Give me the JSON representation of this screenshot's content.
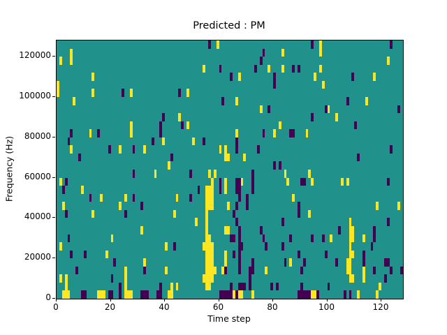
{
  "chart_data": {
    "type": "heatmap",
    "title": "Predicted : PM",
    "xlabel": "Time step",
    "ylabel": "Frequency (Hz)",
    "x_range": [
      0,
      128
    ],
    "y_range": [
      0,
      128000
    ],
    "grid": {
      "cols": 128,
      "rows": 32,
      "hz_per_row": 4000,
      "grid_lines": "off",
      "legend": "none"
    },
    "x_ticks": [
      0,
      20,
      40,
      60,
      80,
      100,
      120
    ],
    "y_ticks": [
      0,
      20000,
      40000,
      60000,
      80000,
      100000,
      120000
    ],
    "colors": {
      "background_class": "#21918c",
      "high_class": "#fde725",
      "low_class": "#440154",
      "figure_bg": "#ffffff"
    },
    "cells_yellow": [
      [
        0,
        25
      ],
      [
        0,
        26
      ],
      [
        1,
        29
      ],
      [
        5,
        29
      ],
      [
        5,
        30
      ],
      [
        6,
        24
      ],
      [
        13,
        27
      ],
      [
        13,
        25
      ],
      [
        27,
        25
      ],
      [
        27,
        21
      ],
      [
        27,
        20
      ],
      [
        45,
        22
      ],
      [
        48,
        25
      ],
      [
        48,
        21
      ],
      [
        54,
        28
      ],
      [
        59,
        31
      ],
      [
        83,
        30
      ],
      [
        78,
        28
      ],
      [
        83,
        28
      ],
      [
        67,
        27
      ],
      [
        95,
        27
      ],
      [
        66,
        24
      ],
      [
        75,
        23
      ],
      [
        82,
        21
      ],
      [
        97,
        31
      ],
      [
        97,
        30
      ],
      [
        97,
        28
      ],
      [
        122,
        29
      ],
      [
        117,
        27
      ],
      [
        98,
        26
      ],
      [
        114,
        24
      ],
      [
        100,
        23
      ],
      [
        103,
        22
      ],
      [
        12,
        20
      ],
      [
        5,
        18
      ],
      [
        23,
        18
      ],
      [
        1,
        14
      ],
      [
        9,
        13
      ],
      [
        16,
        12
      ],
      [
        25,
        12
      ],
      [
        2,
        11
      ],
      [
        23,
        11
      ],
      [
        39,
        19
      ],
      [
        50,
        19
      ],
      [
        32,
        18
      ],
      [
        41,
        16
      ],
      [
        60,
        18
      ],
      [
        62,
        18
      ],
      [
        62,
        17
      ],
      [
        63,
        17
      ],
      [
        36,
        15
      ],
      [
        56,
        15
      ],
      [
        58,
        15
      ],
      [
        44,
        12
      ],
      [
        62,
        14
      ],
      [
        62,
        13
      ],
      [
        63,
        11
      ],
      [
        87,
        12
      ],
      [
        66,
        20
      ],
      [
        80,
        20
      ],
      [
        92,
        20
      ],
      [
        69,
        17
      ],
      [
        68,
        14
      ],
      [
        84,
        15
      ],
      [
        93,
        15
      ],
      [
        85,
        14
      ],
      [
        94,
        14
      ],
      [
        105,
        14
      ],
      [
        107,
        14
      ],
      [
        118,
        11
      ],
      [
        126,
        11
      ],
      [
        55,
        13
      ],
      [
        55,
        12
      ],
      [
        55,
        11
      ],
      [
        56,
        13
      ],
      [
        56,
        12
      ],
      [
        56,
        11
      ],
      [
        57,
        14
      ],
      [
        57,
        13
      ],
      [
        57,
        12
      ],
      [
        57,
        11
      ],
      [
        3,
        2
      ],
      [
        3,
        1
      ],
      [
        2,
        0
      ],
      [
        3,
        0
      ],
      [
        4,
        0
      ],
      [
        13,
        10
      ],
      [
        31,
        8
      ],
      [
        1,
        6
      ],
      [
        20,
        7
      ],
      [
        18,
        5
      ],
      [
        1,
        2
      ],
      [
        15,
        0
      ],
      [
        16,
        0
      ],
      [
        17,
        0
      ],
      [
        25,
        3
      ],
      [
        25,
        2
      ],
      [
        25,
        1
      ],
      [
        25,
        0
      ],
      [
        26,
        0
      ],
      [
        27,
        0
      ],
      [
        43,
        10
      ],
      [
        51,
        9
      ],
      [
        40,
        6
      ],
      [
        40,
        3
      ],
      [
        32,
        4
      ],
      [
        42,
        1
      ],
      [
        44,
        1
      ],
      [
        41,
        0
      ],
      [
        42,
        0
      ],
      [
        62,
        8
      ],
      [
        63,
        8
      ],
      [
        62,
        5
      ],
      [
        62,
        4
      ],
      [
        61,
        3
      ],
      [
        55,
        10
      ],
      [
        55,
        9
      ],
      [
        55,
        8
      ],
      [
        55,
        7
      ],
      [
        55,
        6
      ],
      [
        55,
        5
      ],
      [
        55,
        4
      ],
      [
        55,
        3
      ],
      [
        55,
        2
      ],
      [
        55,
        1
      ],
      [
        56,
        7
      ],
      [
        56,
        6
      ],
      [
        56,
        5
      ],
      [
        56,
        4
      ],
      [
        56,
        3
      ],
      [
        56,
        2
      ],
      [
        56,
        1
      ],
      [
        57,
        6
      ],
      [
        57,
        5
      ],
      [
        57,
        4
      ],
      [
        57,
        3
      ],
      [
        57,
        2
      ],
      [
        54,
        6
      ],
      [
        54,
        2
      ],
      [
        58,
        3
      ],
      [
        93,
        10
      ],
      [
        86,
        4
      ],
      [
        77,
        3
      ],
      [
        72,
        0
      ],
      [
        94,
        0
      ],
      [
        95,
        0
      ],
      [
        65,
        0
      ],
      [
        67,
        0
      ],
      [
        68,
        0
      ],
      [
        101,
        7
      ],
      [
        113,
        7
      ],
      [
        113,
        3
      ],
      [
        113,
        2
      ],
      [
        119,
        1
      ],
      [
        118,
        0
      ],
      [
        111,
        0
      ],
      [
        107,
        4
      ],
      [
        107,
        3
      ],
      [
        108,
        9
      ],
      [
        108,
        8
      ],
      [
        108,
        7
      ],
      [
        108,
        6
      ],
      [
        108,
        5
      ],
      [
        108,
        4
      ],
      [
        108,
        3
      ],
      [
        108,
        2
      ],
      [
        109,
        8
      ],
      [
        109,
        7
      ],
      [
        109,
        5
      ],
      [
        109,
        2
      ]
    ],
    "cells_dark": [
      [
        24,
        25
      ],
      [
        56,
        31
      ],
      [
        60,
        28
      ],
      [
        45,
        25
      ],
      [
        61,
        24
      ],
      [
        39,
        22
      ],
      [
        46,
        21
      ],
      [
        94,
        31
      ],
      [
        76,
        30
      ],
      [
        75,
        29
      ],
      [
        73,
        28
      ],
      [
        87,
        28
      ],
      [
        89,
        28
      ],
      [
        64,
        27
      ],
      [
        80,
        27
      ],
      [
        80,
        26
      ],
      [
        78,
        23
      ],
      [
        94,
        22
      ],
      [
        123,
        31
      ],
      [
        109,
        27
      ],
      [
        107,
        24
      ],
      [
        99,
        23
      ],
      [
        126,
        23
      ],
      [
        110,
        21
      ],
      [
        5,
        20
      ],
      [
        15,
        20
      ],
      [
        4,
        19
      ],
      [
        8,
        17
      ],
      [
        19,
        18
      ],
      [
        28,
        18
      ],
      [
        28,
        15
      ],
      [
        3,
        14
      ],
      [
        2,
        13
      ],
      [
        12,
        12
      ],
      [
        28,
        12
      ],
      [
        31,
        11
      ],
      [
        38,
        21
      ],
      [
        38,
        20
      ],
      [
        35,
        19
      ],
      [
        54,
        19
      ],
      [
        42,
        17
      ],
      [
        49,
        15
      ],
      [
        52,
        13
      ],
      [
        49,
        12
      ],
      [
        60,
        14
      ],
      [
        60,
        13
      ],
      [
        66,
        19
      ],
      [
        66,
        18
      ],
      [
        74,
        18
      ],
      [
        76,
        20
      ],
      [
        86,
        20
      ],
      [
        87,
        20
      ],
      [
        80,
        16
      ],
      [
        82,
        16
      ],
      [
        72,
        15
      ],
      [
        72,
        14
      ],
      [
        72,
        13
      ],
      [
        66,
        14
      ],
      [
        67,
        14
      ],
      [
        66,
        13
      ],
      [
        67,
        13
      ],
      [
        67,
        12
      ],
      [
        70,
        12
      ],
      [
        66,
        11
      ],
      [
        70,
        11
      ],
      [
        89,
        11
      ],
      [
        90,
        14
      ],
      [
        91,
        14
      ],
      [
        111,
        17
      ],
      [
        122,
        14
      ],
      [
        123,
        18
      ],
      [
        3,
        10
      ],
      [
        25,
        10
      ],
      [
        4,
        7
      ],
      [
        5,
        5
      ],
      [
        10,
        5
      ],
      [
        21,
        4
      ],
      [
        7,
        3
      ],
      [
        20,
        2
      ],
      [
        23,
        1
      ],
      [
        9,
        0
      ],
      [
        10,
        0
      ],
      [
        19,
        0
      ],
      [
        20,
        0
      ],
      [
        23,
        0
      ],
      [
        31,
        0
      ],
      [
        43,
        6
      ],
      [
        38,
        1
      ],
      [
        32,
        3
      ],
      [
        32,
        0
      ],
      [
        33,
        0
      ],
      [
        37,
        0
      ],
      [
        38,
        0
      ],
      [
        62,
        3
      ],
      [
        60,
        0
      ],
      [
        61,
        0
      ],
      [
        62,
        0
      ],
      [
        63,
        0
      ],
      [
        65,
        10
      ],
      [
        66,
        9
      ],
      [
        64,
        7
      ],
      [
        65,
        7
      ],
      [
        67,
        8
      ],
      [
        67,
        7
      ],
      [
        67,
        6
      ],
      [
        68,
        6
      ],
      [
        65,
        5
      ],
      [
        67,
        5
      ],
      [
        67,
        4
      ],
      [
        67,
        3
      ],
      [
        71,
        3
      ],
      [
        71,
        2
      ],
      [
        72,
        4
      ],
      [
        72,
        3
      ],
      [
        75,
        8
      ],
      [
        76,
        7
      ],
      [
        77,
        6
      ],
      [
        83,
        9
      ],
      [
        83,
        6
      ],
      [
        86,
        7
      ],
      [
        89,
        10
      ],
      [
        89,
        5
      ],
      [
        84,
        4
      ],
      [
        91,
        4
      ],
      [
        90,
        3
      ],
      [
        94,
        7
      ],
      [
        64,
        1
      ],
      [
        67,
        1
      ],
      [
        69,
        1
      ],
      [
        71,
        1
      ],
      [
        79,
        1
      ],
      [
        81,
        1
      ],
      [
        90,
        1
      ],
      [
        68,
        1
      ],
      [
        64,
        0
      ],
      [
        66,
        0
      ],
      [
        89,
        0
      ],
      [
        90,
        0
      ],
      [
        91,
        0
      ],
      [
        92,
        0
      ],
      [
        93,
        0
      ],
      [
        98,
        7
      ],
      [
        99,
        5
      ],
      [
        103,
        4
      ],
      [
        104,
        8
      ],
      [
        116,
        6
      ],
      [
        117,
        8
      ],
      [
        117,
        7
      ],
      [
        113,
        5
      ],
      [
        113,
        4
      ],
      [
        121,
        4
      ],
      [
        122,
        4
      ],
      [
        122,
        9
      ],
      [
        117,
        3
      ],
      [
        123,
        3
      ],
      [
        127,
        3
      ],
      [
        121,
        2
      ],
      [
        100,
        1
      ],
      [
        96,
        0
      ],
      [
        106,
        0
      ],
      [
        108,
        0
      ]
    ]
  }
}
